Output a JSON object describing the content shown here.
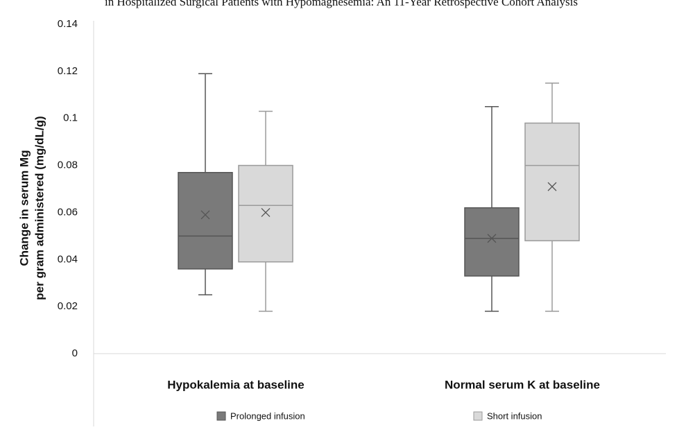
{
  "chart_data": {
    "type": "box",
    "title": "in Hospitalized Surgical Patients with Hypomagnesemia: An 11-Year Retrospective Cohort Analysis",
    "y_label": [
      "Change in serum Mg",
      "per gram administered (mg/dL/g)"
    ],
    "categories": [
      "Hypokalemia at baseline",
      "Normal serum K at baseline"
    ],
    "series": [
      {
        "name": "Prolonged infusion",
        "color": "#7a7a7a",
        "stroke": "#555555",
        "min": [
          0.025,
          0.018
        ],
        "q1": [
          0.036,
          0.033
        ],
        "median": [
          0.05,
          0.049
        ],
        "q3": [
          0.077,
          0.062
        ],
        "max": [
          0.119,
          0.105
        ],
        "mean": [
          0.059,
          0.049
        ]
      },
      {
        "name": "Short infusion",
        "color": "#d9d9d9",
        "stroke": "#9a9a9a",
        "min": [
          0.018,
          0.018
        ],
        "q1": [
          0.039,
          0.048
        ],
        "median": [
          0.063,
          0.08
        ],
        "q3": [
          0.08,
          0.098
        ],
        "max": [
          0.103,
          0.115
        ],
        "mean": [
          0.06,
          0.071
        ]
      }
    ],
    "ylim": [
      0,
      0.14
    ],
    "yticks": [
      0,
      0.02,
      0.04,
      0.06,
      0.08,
      0.1,
      0.12,
      0.14
    ],
    "grid": false
  }
}
